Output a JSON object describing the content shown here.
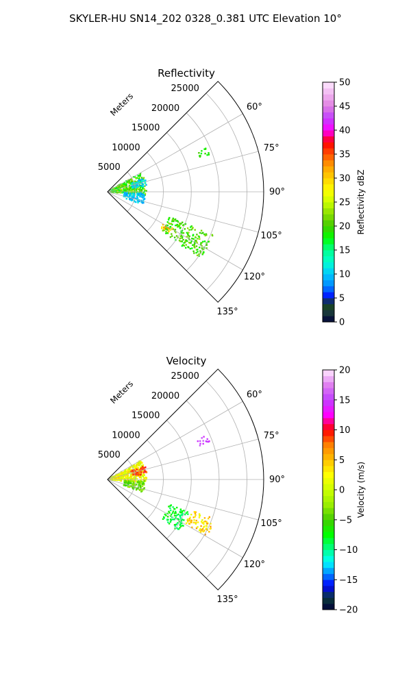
{
  "figure": {
    "title": "SKYLER-HU  SN14_202  0328_0.381 UTC Elevation 10°"
  },
  "chart_data": [
    {
      "type": "heatmap",
      "projection": "polar-sector",
      "title": "Reflectivity",
      "radial_label": "Meters",
      "r_range": [
        0,
        28000
      ],
      "r_ticks": [
        5000,
        10000,
        15000,
        20000,
        25000
      ],
      "r_tick_labels": [
        "5000",
        "10000",
        "15000",
        "20000",
        "25000"
      ],
      "azimuth_range_deg": [
        45,
        135
      ],
      "azimuth_ticks": [
        60,
        75,
        90,
        105,
        120,
        135
      ],
      "azimuth_tick_labels": [
        "60°",
        "75°",
        "90°",
        "105°",
        "120°",
        "135°"
      ],
      "grid": true,
      "colorbar": {
        "label": "Reflectivity dBZ",
        "range": [
          0,
          50
        ],
        "ticks": [
          0,
          5,
          10,
          15,
          20,
          25,
          30,
          35,
          40,
          45,
          50
        ],
        "tick_labels": [
          "0",
          "5",
          "10",
          "15",
          "20",
          "25",
          "30",
          "35",
          "40",
          "45",
          "50"
        ],
        "colors": [
          [
            0,
            "#00003a"
          ],
          [
            2,
            "#1a3a3a"
          ],
          [
            4,
            "#1a4a1a"
          ],
          [
            5,
            "#0000ff"
          ],
          [
            7.5,
            "#0088ff"
          ],
          [
            10,
            "#00c8ff"
          ],
          [
            12.5,
            "#00ffd0"
          ],
          [
            15,
            "#00ff90"
          ],
          [
            17.5,
            "#00ff00"
          ],
          [
            20,
            "#44cc00"
          ],
          [
            22.5,
            "#88dd00"
          ],
          [
            25,
            "#ccff00"
          ],
          [
            27.5,
            "#ffff00"
          ],
          [
            30,
            "#ffd000"
          ],
          [
            32.5,
            "#ffa000"
          ],
          [
            35,
            "#ff5000"
          ],
          [
            37.5,
            "#ff0000"
          ],
          [
            40,
            "#ff00ff"
          ],
          [
            42.5,
            "#c040ff"
          ],
          [
            45,
            "#e080e0"
          ],
          [
            50,
            "#ffe8ff"
          ]
        ]
      },
      "echo_regions": [
        {
          "az": [
            60,
            96
          ],
          "r": [
            500,
            7000
          ],
          "value": 20,
          "spread": 4
        },
        {
          "az": [
            70,
            82
          ],
          "r": [
            4500,
            7200
          ],
          "value": 11,
          "spread": 3
        },
        {
          "az": [
            92,
            110
          ],
          "r": [
            3000,
            6800
          ],
          "value": 10,
          "spread": 2
        },
        {
          "az": [
            66,
            70
          ],
          "r": [
            17500,
            19500
          ],
          "value": 19,
          "spread": 2
        },
        {
          "az": [
            112,
            126
          ],
          "r": [
            12000,
            20500
          ],
          "value": 20,
          "spread": 3
        },
        {
          "az": [
            119,
            124
          ],
          "r": [
            11500,
            13500
          ],
          "value": 32,
          "spread": 4
        }
      ]
    },
    {
      "type": "heatmap",
      "projection": "polar-sector",
      "title": "Velocity",
      "radial_label": "Meters",
      "r_range": [
        0,
        28000
      ],
      "r_ticks": [
        5000,
        10000,
        15000,
        20000,
        25000
      ],
      "r_tick_labels": [
        "5000",
        "10000",
        "15000",
        "20000",
        "25000"
      ],
      "azimuth_range_deg": [
        45,
        135
      ],
      "azimuth_ticks": [
        60,
        75,
        90,
        105,
        120,
        135
      ],
      "azimuth_tick_labels": [
        "60°",
        "75°",
        "90°",
        "105°",
        "120°",
        "135°"
      ],
      "grid": true,
      "colorbar": {
        "label": "Velocity (m/s)",
        "range": [
          -20,
          20
        ],
        "ticks": [
          -20,
          -15,
          -10,
          -5,
          0,
          5,
          10,
          15,
          20
        ],
        "tick_labels": [
          "−20",
          "−15",
          "−10",
          "−5",
          "0",
          "5",
          "10",
          "15",
          "20"
        ],
        "colors": [
          [
            -20,
            "#00003a"
          ],
          [
            -18,
            "#0a3a3a"
          ],
          [
            -16,
            "#0000ff"
          ],
          [
            -14,
            "#0088ff"
          ],
          [
            -12,
            "#00ffff"
          ],
          [
            -10,
            "#00ff90"
          ],
          [
            -7.5,
            "#00ff00"
          ],
          [
            -5,
            "#44cc00"
          ],
          [
            -2.5,
            "#99ee00"
          ],
          [
            0,
            "#ccff00"
          ],
          [
            2.5,
            "#ffff00"
          ],
          [
            5,
            "#ffc000"
          ],
          [
            7.5,
            "#ff8000"
          ],
          [
            10,
            "#ff0000"
          ],
          [
            12.5,
            "#ff00ff"
          ],
          [
            15,
            "#c040ff"
          ],
          [
            17.5,
            "#e080f0"
          ],
          [
            20,
            "#ffe8ff"
          ]
        ]
      },
      "echo_regions": [
        {
          "az": [
            60,
            96
          ],
          "r": [
            500,
            7000
          ],
          "value": 2,
          "spread": 3
        },
        {
          "az": [
            70,
            82
          ],
          "r": [
            4500,
            7200
          ],
          "value": 9,
          "spread": 2
        },
        {
          "az": [
            92,
            110
          ],
          "r": [
            3000,
            6800
          ],
          "value": -4,
          "spread": 2
        },
        {
          "az": [
            66,
            70
          ],
          "r": [
            17500,
            19500
          ],
          "value": 15,
          "spread": 1
        },
        {
          "az": [
            112,
            126
          ],
          "r": [
            12000,
            16000
          ],
          "value": -8,
          "spread": 2
        },
        {
          "az": [
            110,
            120
          ],
          "r": [
            16000,
            20500
          ],
          "value": 4,
          "spread": 3
        }
      ]
    }
  ]
}
